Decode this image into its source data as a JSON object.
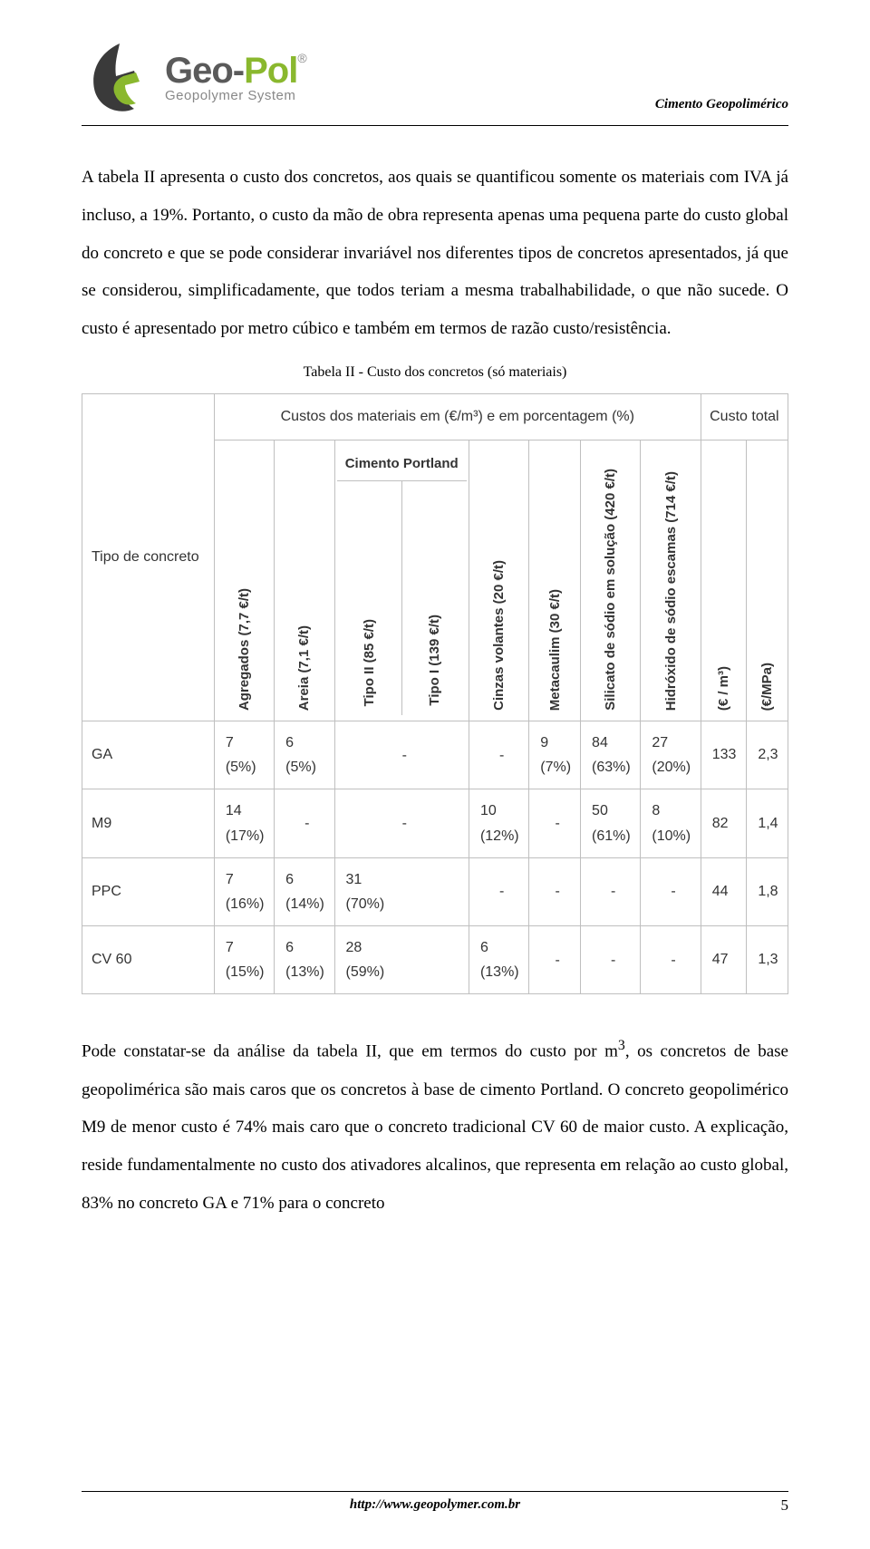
{
  "header": {
    "brand_geo": "Geo",
    "brand_dash": "-",
    "brand_pol": "Pol",
    "reg": "®",
    "tagline": "Geopolymer System",
    "doc_title": "Cimento Geopolimérico",
    "logo_colors": {
      "dark_stroke": "#3a3a3a",
      "green": "#8ab82e"
    }
  },
  "para1": "A tabela II apresenta o custo dos concretos, aos quais se quantificou somente os materiais com IVA já incluso, a 19%. Portanto, o custo da mão de obra representa apenas uma pequena parte do custo global do concreto e que se pode considerar invariável nos diferentes tipos de concretos apresentados, já que se considerou, simplificadamente, que todos teriam a mesma trabalhabilidade, o que não sucede. O custo é apresentado por metro cúbico e também em termos de razão custo/resistência.",
  "table_caption": "Tabela II - Custo dos concretos (só materiais)",
  "table": {
    "group_header_costs": "Custos dos materiais em (€/m³) e em porcentagem (%)",
    "group_header_total": "Custo total",
    "rowlabel": "Tipo de concreto",
    "col_headers": {
      "agregados": "Agregados (7,7 €/t)",
      "areia": "Areia (7,1 €/t)",
      "portland_top": "Cimento Portland",
      "portland_tipo2": "Tipo II (85 €/t)",
      "portland_tipo1": "Tipo I (139 €/t)",
      "cinzas": "Cinzas volantes (20 €/t)",
      "metacaulim": "Metacaulim (30 €/t)",
      "silicato": "Silicato de sódio em solução (420 €/t)",
      "hidroxido": "Hidróxido de sódio escamas (714 €/t)",
      "eur_m3": "(€ / m³)",
      "eur_mpa": "(€/MPa)"
    },
    "rows": [
      {
        "name": "GA",
        "cells": [
          {
            "v": "7",
            "p": "(5%)"
          },
          {
            "v": "6",
            "p": "(5%)"
          },
          {
            "v": "-",
            "p": ""
          },
          {
            "v": "-",
            "p": ""
          },
          {
            "v": "9",
            "p": "(7%)"
          },
          {
            "v": "84",
            "p": "(63%)"
          },
          {
            "v": "27",
            "p": "(20%)"
          }
        ],
        "total_m3": "133",
        "total_mpa": "2,3"
      },
      {
        "name": "M9",
        "cells": [
          {
            "v": "14",
            "p": "(17%)"
          },
          {
            "v": "-",
            "p": ""
          },
          {
            "v": "-",
            "p": ""
          },
          {
            "v": "10",
            "p": "(12%)"
          },
          {
            "v": "-",
            "p": ""
          },
          {
            "v": "50",
            "p": "(61%)"
          },
          {
            "v": "8",
            "p": "(10%)"
          }
        ],
        "total_m3": "82",
        "total_mpa": "1,4"
      },
      {
        "name": "PPC",
        "cells": [
          {
            "v": "7",
            "p": "(16%)"
          },
          {
            "v": "6",
            "p": "(14%)"
          },
          {
            "v": "31",
            "p": "(70%)"
          },
          {
            "v": "-",
            "p": ""
          },
          {
            "v": "-",
            "p": ""
          },
          {
            "v": "-",
            "p": ""
          },
          {
            "v": "-",
            "p": ""
          }
        ],
        "total_m3": "44",
        "total_mpa": "1,8"
      },
      {
        "name": "CV 60",
        "cells": [
          {
            "v": "7",
            "p": "(15%)"
          },
          {
            "v": "6",
            "p": "(13%)"
          },
          {
            "v": "28",
            "p": "(59%)"
          },
          {
            "v": "6",
            "p": "(13%)"
          },
          {
            "v": "-",
            "p": ""
          },
          {
            "v": "-",
            "p": ""
          },
          {
            "v": "-",
            "p": ""
          }
        ],
        "total_m3": "47",
        "total_mpa": "1,3"
      }
    ]
  },
  "para2_a": "Pode constatar-se da análise da tabela II, que em termos do custo por m",
  "para2_sup": "3",
  "para2_b": ", os concretos de base geopolimérica são mais caros que os concretos à base de cimento Portland.  O concreto geopolimérico M9 de menor custo é 74% mais caro que o concreto tradicional CV 60 de maior custo. A explicação, reside fundamentalmente no custo dos  ativadores alcalinos, que representa em relação ao custo global, 83% no concreto GA e 71% para o concreto",
  "footer": {
    "url": "http://www.geopolymer.com.br",
    "page": "5"
  }
}
